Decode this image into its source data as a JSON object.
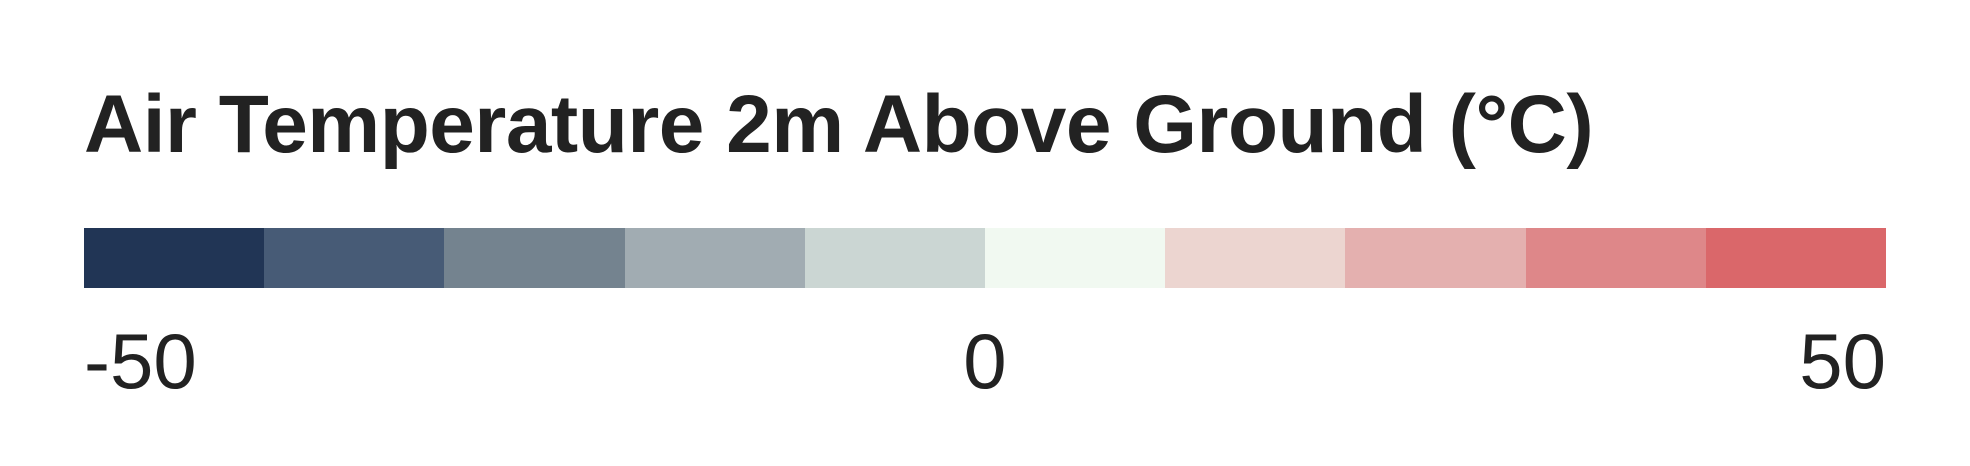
{
  "legend": {
    "title": "Air Temperature 2m Above Ground (°C)",
    "colors": [
      "#213555",
      "#475b76",
      "#74838f",
      "#a1acb2",
      "#cbd6d3",
      "#f1f9f1",
      "#ecd5d0",
      "#e4b0af",
      "#de8789",
      "#da676a"
    ],
    "ticks": {
      "min": "-50",
      "mid": "0",
      "max": "50"
    }
  }
}
